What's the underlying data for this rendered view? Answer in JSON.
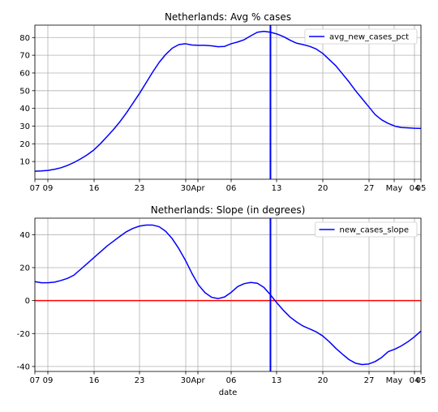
{
  "chart_data": [
    {
      "type": "line",
      "title": "Netherlands: Avg % cases",
      "xlabel": "",
      "ylabel": "",
      "x_ticks": [
        "07",
        "09",
        "16",
        "23",
        "30",
        "Apr",
        "06",
        "13",
        "20",
        "27",
        "May",
        "04",
        "05"
      ],
      "x_range": [
        "2020-03-07",
        "2020-05-05"
      ],
      "ylim": [
        0,
        87
      ],
      "y_ticks": [
        10,
        20,
        30,
        40,
        50,
        60,
        70,
        80
      ],
      "grid": true,
      "legend_position": "top-right",
      "vline": "2020-04-12",
      "series": [
        {
          "name": "avg_new_cases_pct",
          "color": "#0000ff",
          "points": [
            [
              "2020-03-07",
              4.5
            ],
            [
              "2020-03-08",
              4.7
            ],
            [
              "2020-03-09",
              5.0
            ],
            [
              "2020-03-10",
              5.6
            ],
            [
              "2020-03-11",
              6.5
            ],
            [
              "2020-03-12",
              7.8
            ],
            [
              "2020-03-13",
              9.5
            ],
            [
              "2020-03-14",
              11.5
            ],
            [
              "2020-03-15",
              13.8
            ],
            [
              "2020-03-16",
              16.5
            ],
            [
              "2020-03-17",
              20.0
            ],
            [
              "2020-03-18",
              24.0
            ],
            [
              "2020-03-19",
              28.0
            ],
            [
              "2020-03-20",
              32.5
            ],
            [
              "2020-03-21",
              37.5
            ],
            [
              "2020-03-22",
              43.0
            ],
            [
              "2020-03-23",
              48.5
            ],
            [
              "2020-03-24",
              54.5
            ],
            [
              "2020-03-25",
              60.5
            ],
            [
              "2020-03-26",
              66.0
            ],
            [
              "2020-03-27",
              70.5
            ],
            [
              "2020-03-28",
              74.0
            ],
            [
              "2020-03-29",
              76.0
            ],
            [
              "2020-03-30",
              76.5
            ],
            [
              "2020-03-31",
              75.8
            ],
            [
              "2020-04-01",
              75.6
            ],
            [
              "2020-04-02",
              75.6
            ],
            [
              "2020-04-03",
              75.3
            ],
            [
              "2020-04-04",
              74.8
            ],
            [
              "2020-04-05",
              75.0
            ],
            [
              "2020-04-06",
              76.5
            ],
            [
              "2020-04-07",
              77.5
            ],
            [
              "2020-04-08",
              78.8
            ],
            [
              "2020-04-09",
              81.0
            ],
            [
              "2020-04-10",
              83.0
            ],
            [
              "2020-04-11",
              83.5
            ],
            [
              "2020-04-12",
              83.0
            ],
            [
              "2020-04-13",
              82.0
            ],
            [
              "2020-04-14",
              80.5
            ],
            [
              "2020-04-15",
              78.5
            ],
            [
              "2020-04-16",
              76.8
            ],
            [
              "2020-04-17",
              76.0
            ],
            [
              "2020-04-18",
              75.0
            ],
            [
              "2020-04-19",
              73.5
            ],
            [
              "2020-04-20",
              71.0
            ],
            [
              "2020-04-21",
              67.5
            ],
            [
              "2020-04-22",
              64.0
            ],
            [
              "2020-04-23",
              59.5
            ],
            [
              "2020-04-24",
              55.0
            ],
            [
              "2020-04-25",
              50.0
            ],
            [
              "2020-04-26",
              45.5
            ],
            [
              "2020-04-27",
              41.0
            ],
            [
              "2020-04-28",
              36.5
            ],
            [
              "2020-04-29",
              33.5
            ],
            [
              "2020-04-30",
              31.5
            ],
            [
              "2020-05-01",
              30.0
            ],
            [
              "2020-05-02",
              29.2
            ],
            [
              "2020-05-03",
              29.0
            ],
            [
              "2020-05-04",
              28.8
            ],
            [
              "2020-05-05",
              28.7
            ]
          ]
        }
      ]
    },
    {
      "type": "line",
      "title": "Netherlands: Slope (in degrees)",
      "xlabel": "date",
      "ylabel": "",
      "x_ticks": [
        "07",
        "09",
        "16",
        "23",
        "30",
        "Apr",
        "06",
        "13",
        "20",
        "27",
        "May",
        "04",
        "05"
      ],
      "x_range": [
        "2020-03-07",
        "2020-05-05"
      ],
      "ylim": [
        -43,
        50
      ],
      "y_ticks": [
        -40,
        -20,
        0,
        20,
        40
      ],
      "grid": true,
      "legend_position": "top-right",
      "vline": "2020-04-12",
      "hline": 0,
      "series": [
        {
          "name": "new_cases_slope",
          "color": "#0000ff",
          "points": [
            [
              "2020-03-07",
              11.5
            ],
            [
              "2020-03-08",
              10.8
            ],
            [
              "2020-03-09",
              10.8
            ],
            [
              "2020-03-10",
              11.2
            ],
            [
              "2020-03-11",
              12.2
            ],
            [
              "2020-03-12",
              13.5
            ],
            [
              "2020-03-13",
              15.5
            ],
            [
              "2020-03-14",
              19.0
            ],
            [
              "2020-03-15",
              22.5
            ],
            [
              "2020-03-16",
              26.0
            ],
            [
              "2020-03-17",
              29.5
            ],
            [
              "2020-03-18",
              33.0
            ],
            [
              "2020-03-19",
              36.0
            ],
            [
              "2020-03-20",
              39.0
            ],
            [
              "2020-03-21",
              41.8
            ],
            [
              "2020-03-22",
              43.8
            ],
            [
              "2020-03-23",
              45.2
            ],
            [
              "2020-03-24",
              45.8
            ],
            [
              "2020-03-25",
              45.8
            ],
            [
              "2020-03-26",
              44.8
            ],
            [
              "2020-03-27",
              42.0
            ],
            [
              "2020-03-28",
              37.5
            ],
            [
              "2020-03-29",
              31.5
            ],
            [
              "2020-03-30",
              24.5
            ],
            [
              "2020-03-31",
              16.5
            ],
            [
              "2020-04-01",
              9.5
            ],
            [
              "2020-04-02",
              4.8
            ],
            [
              "2020-04-03",
              2.0
            ],
            [
              "2020-04-04",
              1.2
            ],
            [
              "2020-04-05",
              2.2
            ],
            [
              "2020-04-06",
              5.0
            ],
            [
              "2020-04-07",
              8.5
            ],
            [
              "2020-04-08",
              10.3
            ],
            [
              "2020-04-09",
              11.0
            ],
            [
              "2020-04-10",
              10.5
            ],
            [
              "2020-04-11",
              8.0
            ],
            [
              "2020-04-12",
              3.5
            ],
            [
              "2020-04-13",
              -1.5
            ],
            [
              "2020-04-14",
              -6.0
            ],
            [
              "2020-04-15",
              -10.0
            ],
            [
              "2020-04-16",
              -13.0
            ],
            [
              "2020-04-17",
              -15.5
            ],
            [
              "2020-04-18",
              -17.2
            ],
            [
              "2020-04-19",
              -19.0
            ],
            [
              "2020-04-20",
              -21.5
            ],
            [
              "2020-04-21",
              -25.0
            ],
            [
              "2020-04-22",
              -29.0
            ],
            [
              "2020-04-23",
              -32.5
            ],
            [
              "2020-04-24",
              -35.8
            ],
            [
              "2020-04-25",
              -38.0
            ],
            [
              "2020-04-26",
              -38.8
            ],
            [
              "2020-04-27",
              -38.5
            ],
            [
              "2020-04-28",
              -37.0
            ],
            [
              "2020-04-29",
              -34.5
            ],
            [
              "2020-04-30",
              -31.0
            ],
            [
              "2020-05-01",
              -29.5
            ],
            [
              "2020-05-02",
              -27.5
            ],
            [
              "2020-05-03",
              -25.0
            ],
            [
              "2020-05-04",
              -22.0
            ],
            [
              "2020-05-05",
              -18.5
            ]
          ]
        }
      ]
    }
  ]
}
